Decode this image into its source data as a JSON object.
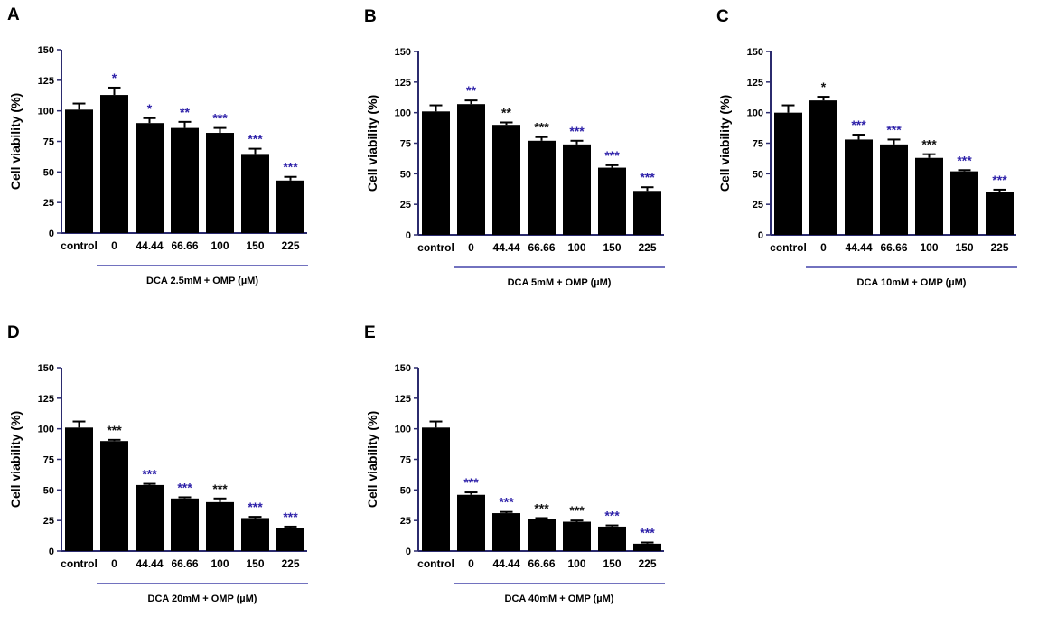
{
  "figure": {
    "colors": {
      "bar": "#000000",
      "axis": "#2b2b6e",
      "bracket": "#4444aa",
      "star_black": "#111111",
      "star_blue": "#2c1fa8"
    }
  },
  "chart_data": [
    {
      "type": "bar",
      "panel": "A",
      "ylabel": "Cell viability (%)",
      "ylim": [
        0,
        150
      ],
      "yticks": [
        "0",
        "25",
        "50",
        "75",
        "100",
        "125",
        "150"
      ],
      "categories": [
        "control",
        "0",
        "44.44",
        "66.66",
        "100",
        "150",
        "225"
      ],
      "values": [
        101,
        113,
        90,
        86,
        82,
        64,
        43
      ],
      "errors": [
        5,
        6,
        4,
        5,
        4,
        5,
        3
      ],
      "significance": [
        "",
        "*",
        "*",
        "**",
        "***",
        "***",
        "***"
      ],
      "star_colors": [
        "",
        "blue",
        "blue",
        "blue",
        "blue",
        "blue",
        "blue"
      ],
      "group_label": "DCA 2.5mM + OMP (µM)"
    },
    {
      "type": "bar",
      "panel": "B",
      "ylabel": "Cell viability (%)",
      "ylim": [
        0,
        150
      ],
      "yticks": [
        "0",
        "25",
        "50",
        "75",
        "100",
        "125",
        "150"
      ],
      "categories": [
        "control",
        "0",
        "44.44",
        "66.66",
        "100",
        "150",
        "225"
      ],
      "values": [
        101,
        107,
        90,
        77,
        74,
        55,
        36
      ],
      "errors": [
        5,
        3,
        2,
        3,
        3,
        2,
        3
      ],
      "significance": [
        "",
        "**",
        "**",
        "***",
        "***",
        "***",
        "***"
      ],
      "star_colors": [
        "",
        "blue",
        "black",
        "black",
        "blue",
        "blue",
        "blue"
      ],
      "group_label": "DCA 5mM + OMP (µM)"
    },
    {
      "type": "bar",
      "panel": "C",
      "ylabel": "Cell viability (%)",
      "ylim": [
        0,
        150
      ],
      "yticks": [
        "0",
        "25",
        "50",
        "75",
        "100",
        "125",
        "150"
      ],
      "categories": [
        "control",
        "0",
        "44.44",
        "66.66",
        "100",
        "150",
        "225"
      ],
      "values": [
        100,
        110,
        78,
        74,
        63,
        52,
        35
      ],
      "errors": [
        6,
        3,
        4,
        4,
        3,
        1,
        2
      ],
      "significance": [
        "",
        "*",
        "***",
        "***",
        "***",
        "***",
        "***"
      ],
      "star_colors": [
        "",
        "black",
        "blue",
        "blue",
        "black",
        "blue",
        "blue"
      ],
      "group_label": "DCA 10mM + OMP (µM)"
    },
    {
      "type": "bar",
      "panel": "D",
      "ylabel": "Cell viability (%)",
      "ylim": [
        0,
        150
      ],
      "yticks": [
        "0",
        "25",
        "50",
        "75",
        "100",
        "125",
        "150"
      ],
      "categories": [
        "control",
        "0",
        "44.44",
        "66.66",
        "100",
        "150",
        "225"
      ],
      "values": [
        101,
        90,
        54,
        43,
        40,
        27,
        19
      ],
      "errors": [
        5,
        1,
        1,
        1,
        3,
        1,
        1
      ],
      "significance": [
        "",
        "***",
        "***",
        "***",
        "***",
        "***",
        "***"
      ],
      "star_colors": [
        "",
        "black",
        "blue",
        "blue",
        "black",
        "blue",
        "blue"
      ],
      "group_label": "DCA 20mM + OMP (µM)"
    },
    {
      "type": "bar",
      "panel": "E",
      "ylabel": "Cell viability (%)",
      "ylim": [
        0,
        150
      ],
      "yticks": [
        "0",
        "25",
        "50",
        "75",
        "100",
        "125",
        "150"
      ],
      "categories": [
        "control",
        "0",
        "44.44",
        "66.66",
        "100",
        "150",
        "225"
      ],
      "values": [
        101,
        46,
        31,
        26,
        24,
        20,
        6
      ],
      "errors": [
        5,
        2,
        1,
        1,
        1,
        1,
        1
      ],
      "significance": [
        "",
        "***",
        "***",
        "***",
        "***",
        "***",
        "***"
      ],
      "star_colors": [
        "",
        "blue",
        "blue",
        "black",
        "black",
        "blue",
        "blue"
      ],
      "group_label": "DCA 40mM + OMP (µM)"
    }
  ]
}
